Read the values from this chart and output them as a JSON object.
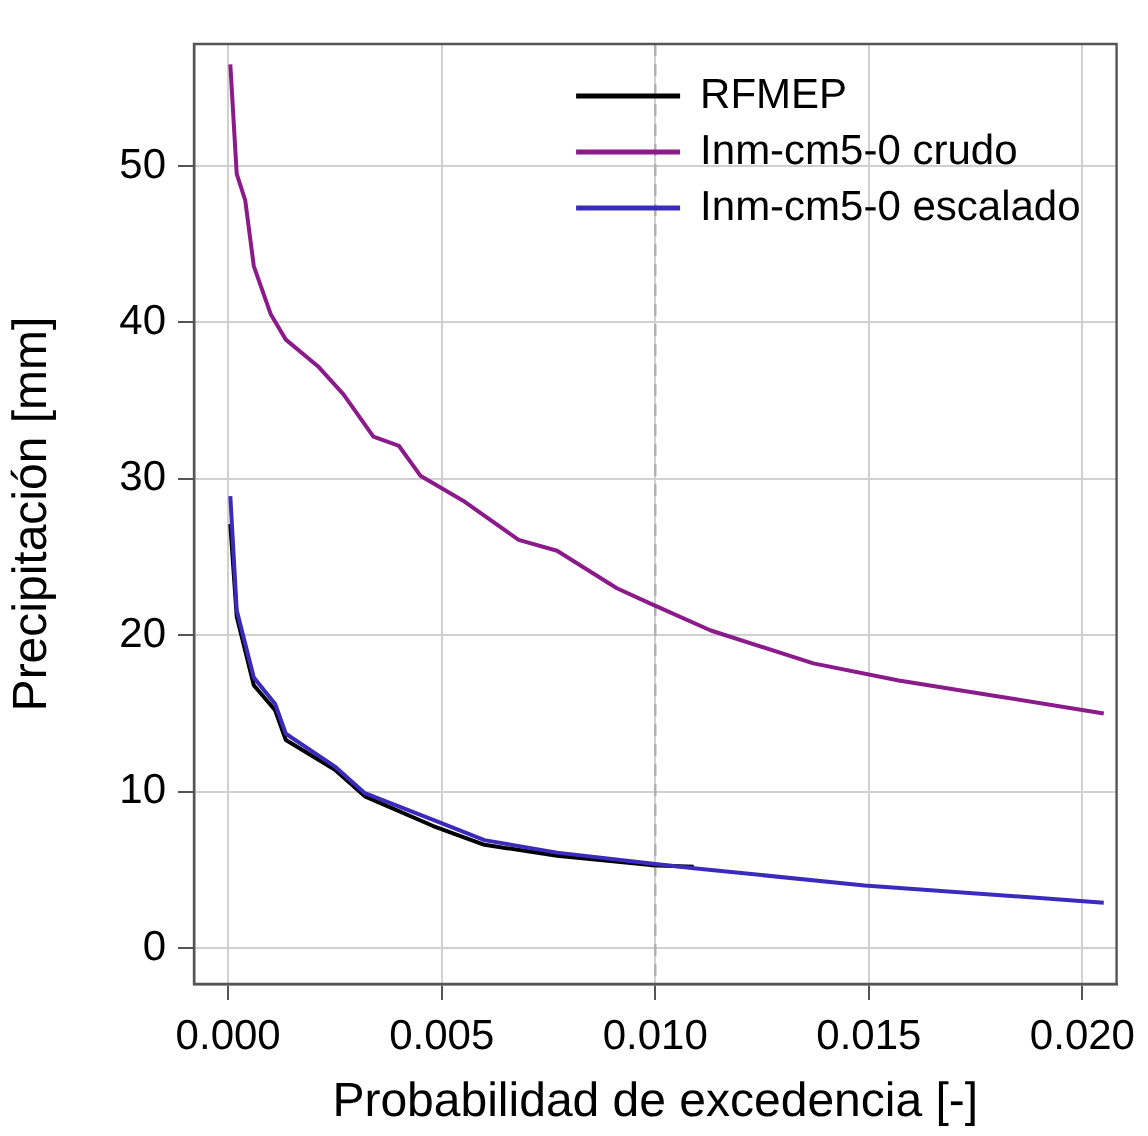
{
  "chart_data": {
    "type": "line",
    "xlabel": "Probabilidad de excedencia [-]",
    "ylabel": "Precipitación [mm]",
    "xlim": [
      -0.0008,
      0.0208
    ],
    "ylim": [
      -2.3,
      57.8
    ],
    "xticks": [
      {
        "value": 0,
        "label": "0.000"
      },
      {
        "value": 0.005,
        "label": "0.005"
      },
      {
        "value": 0.01,
        "label": "0.010"
      },
      {
        "value": 0.015,
        "label": "0.015"
      },
      {
        "value": 0.02,
        "label": "0.020"
      }
    ],
    "yticks": [
      0,
      10,
      20,
      30,
      40,
      50
    ],
    "grid": true,
    "legend": "top right",
    "marker": "none",
    "line_style": "solid",
    "ref_lines": [
      {
        "axis": "x",
        "value": 0.01,
        "color": "#b0b0b0",
        "line_style": "dashed"
      }
    ],
    "series": [
      {
        "name": "RFMEP",
        "color": "#000000",
        "x": [
          5e-05,
          0.0002,
          0.0006,
          0.0011,
          0.00135,
          0.0025,
          0.0032,
          0.0048,
          0.006,
          0.0077,
          0.0099,
          0.0109
        ],
        "values": [
          27.1,
          21.2,
          16.8,
          15.2,
          13.3,
          11.4,
          9.7,
          7.8,
          6.6,
          5.9,
          5.3,
          5.2
        ]
      },
      {
        "name": "Inm-cm5-0 crudo",
        "color": "#8b1a8b",
        "x": [
          5e-05,
          0.0002,
          0.0004,
          0.0006,
          0.001,
          0.00135,
          0.0021,
          0.0027,
          0.0034,
          0.004,
          0.0045,
          0.0055,
          0.0068,
          0.0077,
          0.0091,
          0.0099,
          0.0113,
          0.0137,
          0.0157,
          0.018,
          0.0205
        ],
        "values": [
          56.5,
          49.5,
          47.8,
          43.6,
          40.5,
          38.9,
          37.2,
          35.4,
          32.7,
          32.1,
          30.2,
          28.6,
          26.1,
          25.4,
          23.0,
          22.0,
          20.3,
          18.2,
          17.1,
          16.1,
          15.0
        ]
      },
      {
        "name": "Inm-cm5-0 escalado",
        "color": "#3a2bbd",
        "x": [
          5e-05,
          0.0002,
          0.0006,
          0.0011,
          0.00135,
          0.0025,
          0.0032,
          0.0048,
          0.006,
          0.0077,
          0.0099,
          0.0109,
          0.0149,
          0.0205
        ],
        "values": [
          28.9,
          21.6,
          17.3,
          15.6,
          13.7,
          11.6,
          9.9,
          8.2,
          6.9,
          6.1,
          5.4,
          5.1,
          4.0,
          2.9
        ]
      }
    ]
  }
}
